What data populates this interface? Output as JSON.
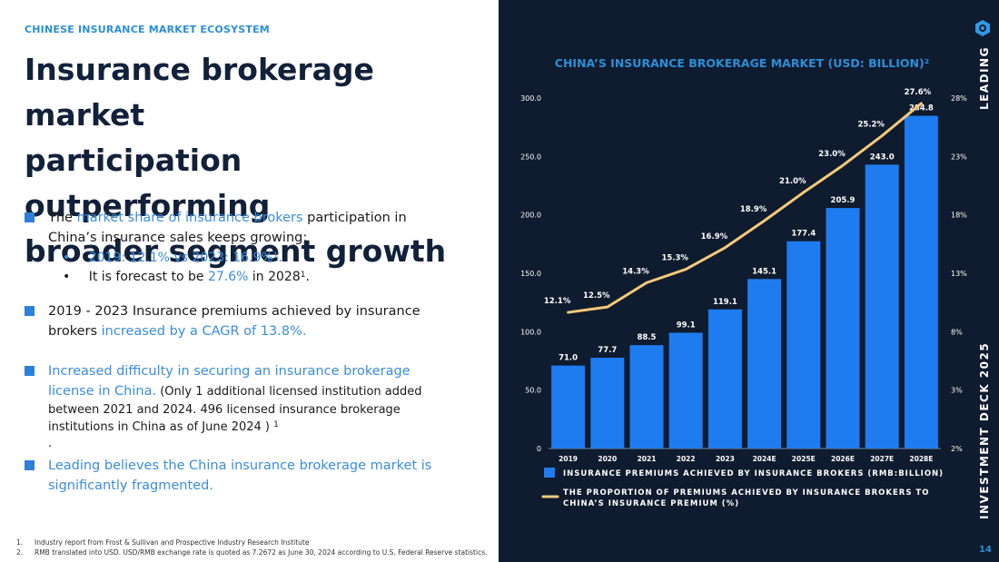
{
  "section_label": "CHINESE INSURANCE MARKET ECOSYSTEM",
  "headline": [
    "Insurance brokerage market",
    "participation outperforming",
    "broader segment growth"
  ],
  "bullets": {
    "b1": {
      "pre": "The ",
      "hl": "market share of insurance brokers",
      "post1": " participation in",
      "line2": "China’s insurance sales keeps growing:",
      "s1_dot": "•",
      "s1": "2019: 12.1% vs 2023: 16.9%",
      "s1_sup": "1",
      "s1_end": ".",
      "s2_dot": "•",
      "s2_pre": "It is forecast to be ",
      "s2_hl": "27.6%",
      "s2_post": " in 2028",
      "s2_sup": "1",
      "s2_end": "."
    },
    "b2": {
      "line1": "2019 - 2023 Insurance premiums achieved by insurance",
      "line2_pre": "brokers ",
      "line2_hl": "increased by a CAGR of 13.8%."
    },
    "b3": {
      "hl1": "Increased difficulty in securing an insurance brokerage",
      "hl2": "license in China.",
      "t1": "  (Only 1 additional licensed institution added",
      "t2": "between 2021 and 2024. 496 licensed insurance brokerage",
      "t3": "institutions in China as of June 2024 ) ",
      "t3_sup": "1",
      "t4": "."
    },
    "b4": {
      "line1": "Leading believes the China insurance brokerage market  is",
      "line2": "significantly fragmented."
    }
  },
  "footnotes": [
    {
      "n": "1.",
      "text": "Industry report from Frost & Sullivan and Prospective Industry Research Institute"
    },
    {
      "n": "2.",
      "text": "RMB translated into USD. USD/RMB exchange rate is quoted as 7.2672 as June 30, 2024 according to U.S. Federal Reserve statistics."
    }
  ],
  "side_top": "LEADING",
  "side_bottom": "INVESTMENT DECK 2025",
  "page_number": "14",
  "colors": {
    "panel_bg": "#0f1b2f",
    "bar": "#1e7cf0",
    "line": "#f5c97a",
    "accent_text": "#2b8fd6"
  },
  "chart_data": {
    "type": "bar",
    "title": "CHINA’S INSURANCE BROKERAGE MARKET (USD: BILLION)²",
    "categories": [
      "2019",
      "2020",
      "2021",
      "2022",
      "2023",
      "2024E",
      "2025E",
      "2026E",
      "2027E",
      "2028E"
    ],
    "series": [
      {
        "name": "INSURANCE PREMIUMS ACHIEVED BY INSURANCE BROKERS (RMB:BILLION)",
        "type": "bar",
        "axis": "left",
        "values": [
          71.0,
          77.7,
          88.5,
          99.1,
          119.1,
          145.1,
          177.4,
          205.9,
          243.0,
          284.8
        ],
        "labels": [
          "71.0",
          "77.7",
          "88.5",
          "99.1",
          "119.1",
          "145.1",
          "177.4",
          "205.9",
          "243.0",
          "284.8"
        ]
      },
      {
        "name": "THE PROPORTION OF PREMIUMS ACHIEVED BY INSURANCE BROKERS TO CHINA’S INSURANCE PREMIUM (%)",
        "type": "line",
        "axis": "right",
        "values": [
          12.1,
          12.5,
          14.3,
          15.3,
          16.9,
          18.9,
          21.0,
          23.0,
          25.2,
          27.6
        ],
        "labels": [
          "12.1%",
          "12.5%",
          "14.3%",
          "15.3%",
          "16.9%",
          "18.9%",
          "21.0%",
          "23.0%",
          "25.2%",
          "27.6%"
        ]
      }
    ],
    "legend_lines": [
      [
        "INSURANCE PREMIUMS ACHIEVED BY INSURANCE BROKERS (RMB:BILLION)"
      ],
      [
        "THE PROPORTION OF PREMIUMS ACHIEVED BY INSURANCE BROKERS TO",
        "CHINA’S INSURANCE PREMIUM (%)"
      ]
    ],
    "ylim_left": [
      0,
      300
    ],
    "yticks_left": [
      "0",
      "50.0",
      "100.0",
      "150.0",
      "200.0",
      "250.0",
      "300.0"
    ],
    "ylim_right": [
      2,
      28
    ],
    "yticks_right": [
      "2%",
      "3%",
      "8%",
      "13%",
      "18%",
      "23%",
      "28%"
    ],
    "legend": "bottom",
    "grid": false
  }
}
